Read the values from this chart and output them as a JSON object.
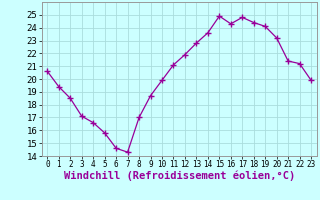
{
  "x": [
    0,
    1,
    2,
    3,
    4,
    5,
    6,
    7,
    8,
    9,
    10,
    11,
    12,
    13,
    14,
    15,
    16,
    17,
    18,
    19,
    20,
    21,
    22,
    23
  ],
  "y": [
    20.6,
    19.4,
    18.5,
    17.1,
    16.6,
    15.8,
    14.6,
    14.3,
    17.0,
    18.7,
    19.9,
    21.1,
    21.9,
    22.8,
    23.6,
    24.9,
    24.3,
    24.8,
    24.4,
    24.1,
    23.2,
    21.4,
    21.2,
    19.9
  ],
  "line_color": "#990099",
  "marker": "+",
  "bg_color": "#ccffff",
  "grid_color": "#aadddd",
  "xlabel": "Windchill (Refroidissement éolien,°C)",
  "xlabel_color": "#990099",
  "ylim": [
    14,
    26
  ],
  "xlim": [
    -0.5,
    23.5
  ],
  "yticks": [
    14,
    15,
    16,
    17,
    18,
    19,
    20,
    21,
    22,
    23,
    24,
    25
  ],
  "xticks": [
    0,
    1,
    2,
    3,
    4,
    5,
    6,
    7,
    8,
    9,
    10,
    11,
    12,
    13,
    14,
    15,
    16,
    17,
    18,
    19,
    20,
    21,
    22,
    23
  ],
  "tick_label_size": 6.5,
  "xtick_label_size": 5.5,
  "xlabel_size": 7.5
}
